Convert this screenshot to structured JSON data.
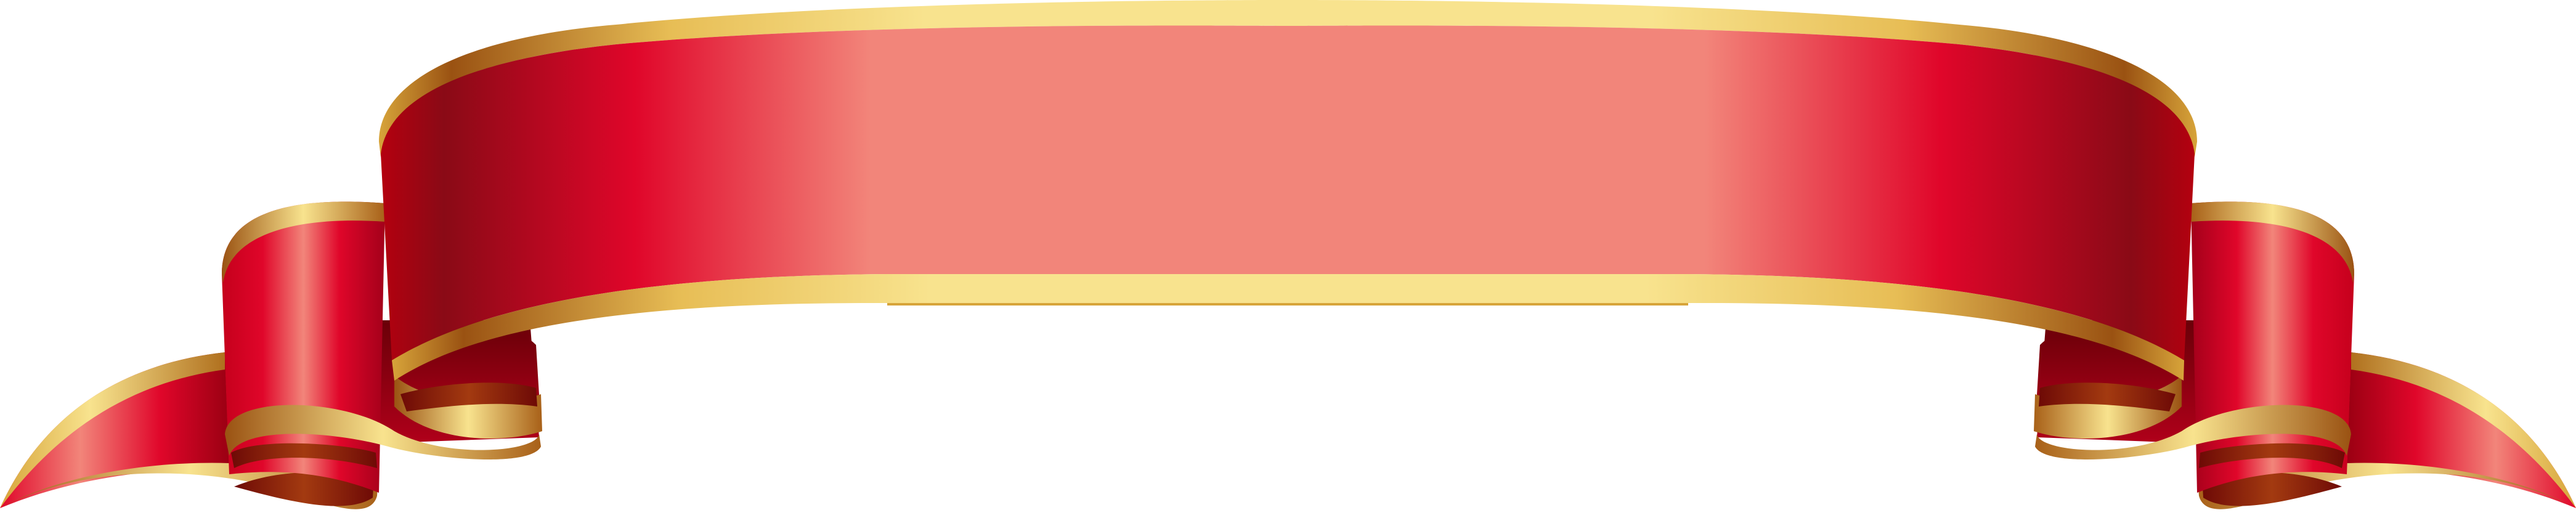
{
  "banner": {
    "colors": {
      "red_dark": "#8a0a16",
      "red_mid": "#e0062a",
      "red_light": "#f2857a",
      "gold_dark": "#9a5212",
      "gold_mid": "#d7a43a",
      "gold_light": "#f8e38e",
      "inner_fold": "#7f1008"
    }
  }
}
